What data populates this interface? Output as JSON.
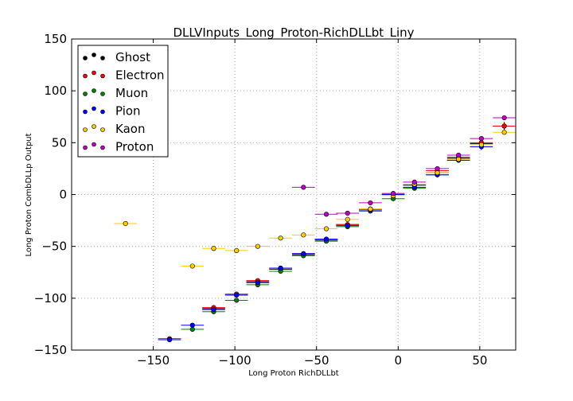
{
  "chart_data": {
    "type": "scatter",
    "title": "DLLVInputs_Long_Proton-RichDLLbt_Liny",
    "xlabel": "Long Proton RichDLLbt",
    "ylabel": "Long Proton CombDLLp Output",
    "xlim": [
      -200,
      72
    ],
    "ylim": [
      -150,
      150
    ],
    "xticks": [
      -150,
      -100,
      -50,
      0,
      50
    ],
    "yticks": [
      -150,
      -100,
      -50,
      0,
      50,
      100,
      150
    ],
    "xtick_labels": [
      "−150",
      "−100",
      "−50",
      "0",
      "50"
    ],
    "ytick_labels": [
      "−150",
      "−100",
      "−50",
      "0",
      "50",
      "100",
      "150"
    ],
    "grid": true,
    "legend_position": "top-left",
    "series": [
      {
        "name": "Ghost",
        "color": "#000000",
        "offset": 0,
        "xerr": 7,
        "x": [
          -140,
          -113,
          -99,
          -86,
          -72,
          -58,
          -44,
          -31,
          -17,
          -3,
          10,
          24,
          37,
          51,
          65
        ],
        "y": [
          -140,
          -110,
          -97,
          -84,
          -72,
          -58,
          -44,
          -29,
          -15,
          0,
          9,
          21,
          35,
          49,
          66
        ],
        "yerr": [
          1,
          1.5,
          1.5,
          1,
          1,
          1,
          1,
          1.5,
          1,
          1,
          1,
          1,
          1.5,
          2,
          4
        ]
      },
      {
        "name": "Electron",
        "color": "#ff0000",
        "offset": 0,
        "xerr": 7,
        "x": [
          -140,
          -113,
          -99,
          -86,
          -72,
          -58,
          -44,
          -31,
          -17,
          -3,
          10,
          24,
          37,
          51,
          65
        ],
        "y": [
          -139,
          -109,
          -96,
          -83,
          -71,
          -57,
          -43,
          -29,
          -14,
          1,
          10,
          23,
          36,
          50,
          66
        ],
        "yerr": [
          1,
          1.5,
          1.5,
          1,
          1,
          1,
          1,
          1,
          1,
          1,
          1,
          1,
          1,
          2,
          3
        ]
      },
      {
        "name": "Muon",
        "color": "#008000",
        "offset": 0,
        "xerr": 7,
        "x": [
          -126,
          -113,
          -99,
          -86,
          -72,
          -58,
          -44,
          -31,
          -17,
          -3,
          10,
          24
        ],
        "y": [
          -130,
          -113,
          -102,
          -87,
          -74,
          -59,
          -45,
          -31,
          -16,
          -4,
          6,
          19
        ],
        "yerr": [
          2,
          2,
          2,
          1.5,
          1.5,
          1,
          1,
          1,
          1,
          1,
          1,
          1.5
        ]
      },
      {
        "name": "Pion",
        "color": "#0000ff",
        "offset": 0,
        "xerr": 7,
        "x": [
          -140,
          -126,
          -113,
          -99,
          -86,
          -72,
          -58,
          -44,
          -31,
          -17,
          -3,
          10,
          24,
          37,
          51
        ],
        "y": [
          -140,
          -126,
          -111,
          -97,
          -85,
          -71,
          -57,
          -43,
          -30,
          -15,
          0,
          7,
          19,
          33,
          46
        ],
        "yerr": [
          1,
          2,
          1,
          1,
          1,
          1,
          1,
          1,
          1,
          1,
          1,
          1,
          1,
          1.5,
          3
        ]
      },
      {
        "name": "Kaon",
        "color": "#ffcc00",
        "offset": 0,
        "xerr": 7,
        "x": [
          -167,
          -126,
          -113,
          -99,
          -86,
          -72,
          -58,
          -44,
          -31,
          -17,
          -3,
          10,
          24,
          37,
          51,
          65
        ],
        "y": [
          -28,
          -69,
          -52,
          -54,
          -50,
          -42,
          -39,
          -33,
          -24,
          -14,
          -1,
          10,
          21,
          34,
          48,
          60
        ],
        "yerr": [
          1,
          1.5,
          1.5,
          1.5,
          1,
          1,
          1,
          1,
          1,
          1,
          1,
          1,
          1,
          1,
          1.5,
          2
        ]
      },
      {
        "name": "Proton",
        "color": "#bf00bf",
        "offset": 0,
        "xerr": 7,
        "x": [
          -58,
          -44,
          -31,
          -17,
          -3,
          10,
          24,
          37,
          51,
          65
        ],
        "y": [
          7,
          -19,
          -18,
          -8,
          1,
          12,
          25,
          38,
          54,
          74
        ],
        "yerr": [
          1,
          1,
          1,
          1,
          1,
          1,
          1,
          1,
          1,
          1
        ]
      }
    ]
  }
}
